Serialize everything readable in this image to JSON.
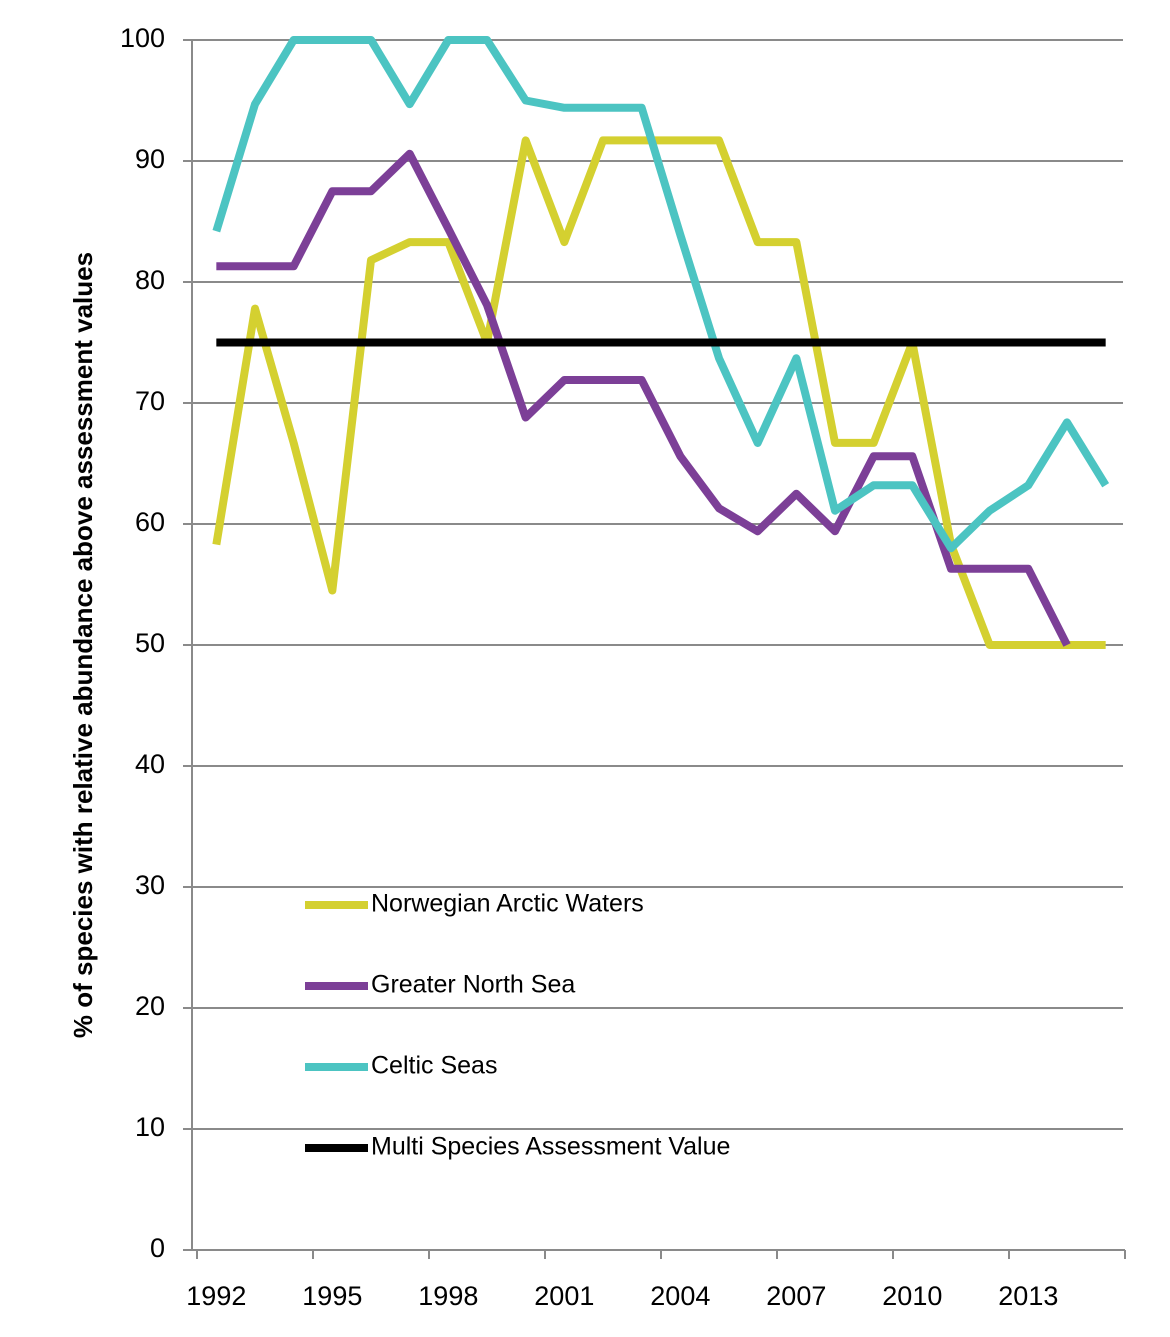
{
  "chart_data": {
    "type": "line",
    "y_label": "% of species with relative abundance above assessment values",
    "categories": [
      1992,
      null,
      null,
      1995,
      null,
      null,
      1998,
      null,
      null,
      2001,
      null,
      null,
      2004,
      null,
      null,
      2007,
      null,
      null,
      2010,
      null,
      null,
      2013,
      null,
      null
    ],
    "ylim": [
      0,
      100
    ],
    "yticks": [
      0,
      10,
      20,
      30,
      40,
      50,
      60,
      70,
      80,
      90,
      100
    ],
    "grid": true,
    "series": [
      {
        "name": "Norwegian Arctic Waters",
        "color": "#d4d030",
        "values": [
          58.3,
          77.8,
          66.7,
          54.5,
          81.8,
          83.3,
          83.3,
          75,
          91.7,
          83.3,
          91.7,
          91.7,
          91.7,
          91.7,
          83.3,
          83.3,
          66.7,
          66.7,
          75,
          58.3,
          50,
          50,
          50,
          50
        ]
      },
      {
        "name": "Greater North Sea",
        "color": "#7c3f97",
        "values": [
          81.3,
          81.3,
          81.3,
          87.5,
          87.5,
          90.6,
          84.4,
          78.1,
          68.8,
          71.9,
          71.9,
          71.9,
          65.6,
          61.3,
          59.4,
          62.5,
          59.4,
          65.6,
          65.6,
          56.3,
          56.3,
          56.3,
          50,
          null
        ]
      },
      {
        "name": "Celtic Seas",
        "color": "#4cc4c2",
        "values": [
          84.2,
          94.7,
          100,
          100,
          100,
          94.7,
          100,
          100,
          95,
          94.4,
          94.4,
          94.4,
          83.9,
          73.7,
          66.7,
          73.7,
          61.1,
          63.2,
          63.2,
          58,
          61.1,
          63.2,
          68.4,
          63.2
        ]
      },
      {
        "name": "Multi Species Assessment Value",
        "color": "#000000",
        "values": [
          75,
          75,
          75,
          75,
          75,
          75,
          75,
          75,
          75,
          75,
          75,
          75,
          75,
          75,
          75,
          75,
          75,
          75,
          75,
          75,
          75,
          75,
          75,
          75
        ]
      }
    ]
  }
}
